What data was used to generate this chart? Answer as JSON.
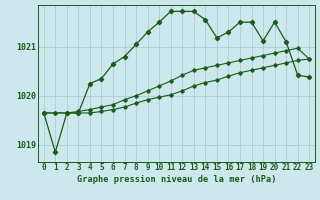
{
  "title": "Graphe pression niveau de la mer (hPa)",
  "bg_color": "#cce8ec",
  "grid_color": "#aacdd4",
  "line_color": "#1a5c1a",
  "x_labels": [
    "0",
    "1",
    "2",
    "3",
    "4",
    "5",
    "6",
    "7",
    "8",
    "9",
    "10",
    "11",
    "12",
    "13",
    "14",
    "15",
    "16",
    "17",
    "18",
    "19",
    "20",
    "21",
    "22",
    "23"
  ],
  "xlim": [
    -0.5,
    23.5
  ],
  "ylim": [
    1018.65,
    1021.85
  ],
  "yticks": [
    1019,
    1020,
    1021
  ],
  "series1": [
    1019.65,
    1018.85,
    1019.65,
    1019.65,
    1020.25,
    1020.35,
    1020.65,
    1020.8,
    1021.05,
    1021.3,
    1021.5,
    1021.72,
    1021.72,
    1021.72,
    1021.55,
    1021.18,
    1021.3,
    1021.5,
    1021.5,
    1021.12,
    1021.5,
    1021.1,
    1020.42,
    1020.38
  ],
  "series2": [
    1019.65,
    1019.65,
    1019.65,
    1019.65,
    1019.65,
    1019.68,
    1019.72,
    1019.77,
    1019.85,
    1019.92,
    1019.97,
    1020.02,
    1020.1,
    1020.2,
    1020.27,
    1020.32,
    1020.4,
    1020.47,
    1020.52,
    1020.57,
    1020.62,
    1020.67,
    1020.72,
    1020.75
  ],
  "series3": [
    1019.65,
    1019.65,
    1019.65,
    1019.68,
    1019.72,
    1019.77,
    1019.82,
    1019.92,
    1020.0,
    1020.1,
    1020.2,
    1020.3,
    1020.42,
    1020.52,
    1020.57,
    1020.62,
    1020.67,
    1020.72,
    1020.77,
    1020.82,
    1020.87,
    1020.92,
    1020.97,
    1020.75
  ],
  "title_fontsize": 6.2,
  "tick_fontsize": 5.5,
  "ytick_fontsize": 6.0
}
